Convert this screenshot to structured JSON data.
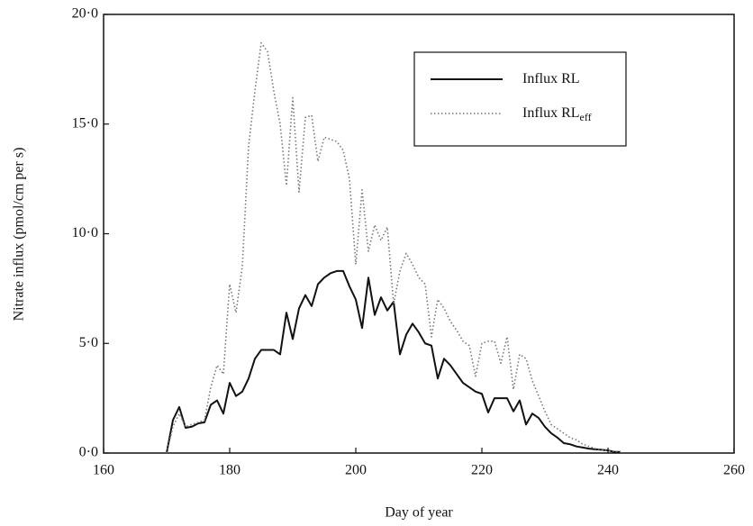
{
  "chart_data": {
    "type": "line",
    "xlabel": "Day of year",
    "ylabel": "Nitrate influx (pmol/cm per s)",
    "x": [
      170,
      171,
      172,
      173,
      174,
      175,
      176,
      177,
      178,
      179,
      180,
      181,
      182,
      183,
      184,
      185,
      186,
      187,
      188,
      189,
      190,
      191,
      192,
      193,
      194,
      195,
      196,
      197,
      198,
      199,
      200,
      201,
      202,
      203,
      204,
      205,
      206,
      207,
      208,
      209,
      210,
      211,
      212,
      213,
      214,
      215,
      216,
      217,
      218,
      219,
      220,
      221,
      222,
      223,
      224,
      225,
      226,
      227,
      228,
      229,
      230,
      231,
      232,
      233,
      234,
      235,
      236,
      237,
      238,
      239,
      240,
      241,
      242
    ],
    "series": [
      {
        "name": "Influx RL",
        "color": "#111111",
        "line_style": "solid",
        "values": [
          0,
          1.5,
          2.1,
          1.15,
          1.2,
          1.35,
          1.4,
          2.2,
          2.4,
          1.8,
          3.2,
          2.6,
          2.8,
          3.4,
          4.3,
          4.7,
          4.7,
          4.7,
          4.5,
          6.4,
          5.2,
          6.6,
          7.2,
          6.7,
          7.7,
          8.0,
          8.2,
          8.3,
          8.3,
          7.6,
          7.0,
          5.7,
          8.0,
          6.3,
          7.1,
          6.5,
          6.9,
          4.5,
          5.4,
          5.9,
          5.5,
          5.0,
          4.9,
          3.4,
          4.3,
          4.0,
          3.6,
          3.2,
          3.0,
          2.8,
          2.7,
          1.85,
          2.5,
          2.5,
          2.5,
          1.9,
          2.4,
          1.3,
          1.8,
          1.6,
          1.2,
          0.9,
          0.7,
          0.45,
          0.4,
          0.3,
          0.25,
          0.2,
          0.17,
          0.15,
          0.12,
          0.05,
          0.05
        ]
      },
      {
        "name": "Influx RL",
        "name_subscript": "eff",
        "color": "#777777",
        "line_style": "dotted",
        "values": [
          0,
          1.2,
          1.8,
          1.2,
          1.3,
          1.4,
          1.5,
          3.0,
          4.0,
          3.6,
          7.7,
          6.4,
          8.5,
          14,
          16.5,
          18.7,
          18.3,
          16.5,
          15,
          12.2,
          16.2,
          11.9,
          15.3,
          15.4,
          13.3,
          14.4,
          14.3,
          14.2,
          13.8,
          12.5,
          8.6,
          12.0,
          9.2,
          10.4,
          9.7,
          10.3,
          6.8,
          8.3,
          9.1,
          8.6,
          8.0,
          7.7,
          5.3,
          7.0,
          6.6,
          6.0,
          5.6,
          5.1,
          4.9,
          3.5,
          5.0,
          5.1,
          5.1,
          4.1,
          5.3,
          2.9,
          4.5,
          4.3,
          3.3,
          2.6,
          1.9,
          1.3,
          1.1,
          0.9,
          0.7,
          0.6,
          0.4,
          0.3,
          0.2,
          0.15,
          0.1,
          0.08,
          0.05
        ]
      }
    ],
    "xlim": [
      160,
      260
    ],
    "xticks": [
      160,
      180,
      200,
      220,
      240,
      260
    ],
    "ylim": [
      0,
      20
    ],
    "yticks": [
      {
        "value": 0,
        "label": "0·0"
      },
      {
        "value": 5,
        "label": "5·0"
      },
      {
        "value": 10,
        "label": "10·0"
      },
      {
        "value": 15,
        "label": "15·0"
      },
      {
        "value": 20,
        "label": "20·0"
      }
    ],
    "grid": false,
    "legend": "upper right"
  }
}
